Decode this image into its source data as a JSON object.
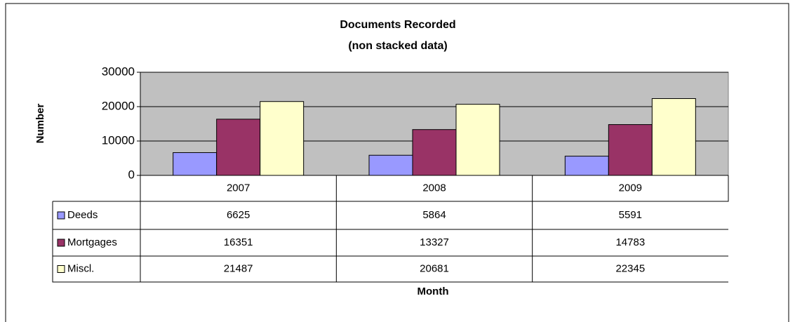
{
  "chart_data": {
    "type": "bar",
    "title": "Documents Recorded",
    "subtitle": "(non stacked data)",
    "y_label": "Number",
    "x_label": "Month",
    "categories": [
      "2007",
      "2008",
      "2009"
    ],
    "series": [
      {
        "name": "Deeds",
        "color": "#9999ff",
        "values": [
          6625,
          5864,
          5591
        ]
      },
      {
        "name": "Mortgages",
        "color": "#993366",
        "values": [
          16351,
          13327,
          14783
        ]
      },
      {
        "name": "Miscl.",
        "color": "#ffffcc",
        "values": [
          21487,
          20681,
          22345
        ]
      }
    ],
    "ylim": [
      0,
      30000
    ],
    "yticks": [
      0,
      10000,
      20000,
      30000
    ],
    "grid": true
  }
}
